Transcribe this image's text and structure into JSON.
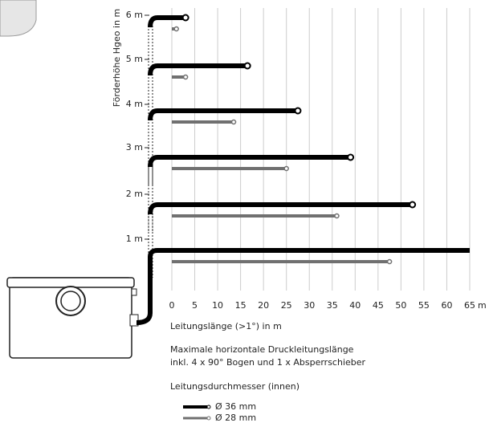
{
  "chart_data": {
    "type": "bar",
    "orientation": "horizontal",
    "y_label": "Förderhöhe Hgeo in m",
    "x_label": "Leitungslänge (>1°) in m",
    "x_unit": "m",
    "note": [
      "Maximale horizontale Druckleitungslänge",
      "inkl. 4 x 90° Bogen und 1 x Absperrschieber"
    ],
    "legend_title": "Leitungsdurchmesser (innen)",
    "categories": [
      "6 m",
      "5 m",
      "4 m",
      "3 m",
      "2 m",
      "1 m"
    ],
    "series": [
      {
        "name": "Ø 36 mm",
        "color": "#000000",
        "values": [
          3,
          16.5,
          27.5,
          39,
          52.5,
          65
        ]
      },
      {
        "name": "Ø 28 mm",
        "color": "#707070",
        "values": [
          1,
          3,
          13.5,
          25,
          36,
          47.5
        ]
      }
    ],
    "xlim": [
      0,
      65
    ],
    "xticks": [
      0,
      5,
      10,
      15,
      20,
      25,
      30,
      35,
      40,
      45,
      50,
      55,
      60,
      65
    ],
    "grid": true
  }
}
